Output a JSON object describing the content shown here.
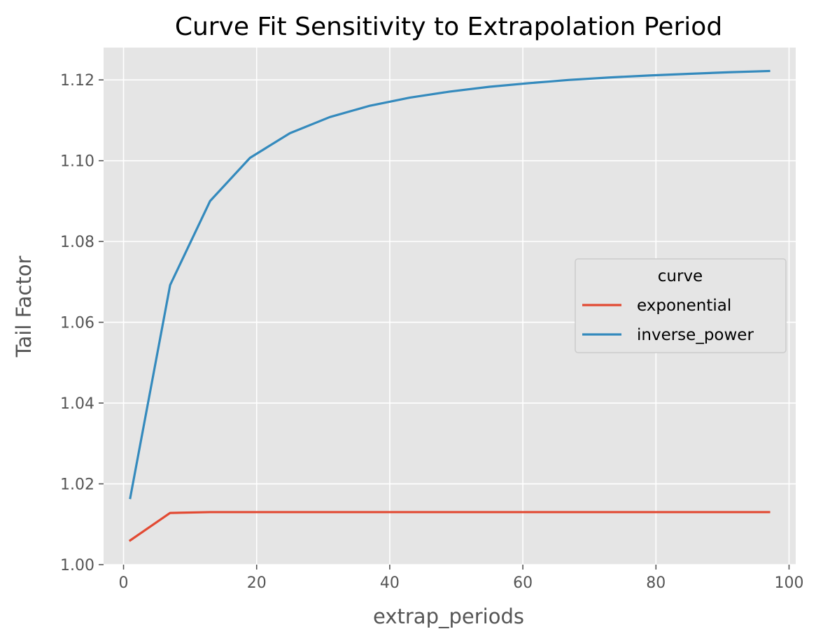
{
  "chart_data": {
    "type": "line",
    "title": "Curve Fit Sensitivity to Extrapolation Period",
    "xlabel": "extrap_periods",
    "ylabel": "Tail Factor",
    "xlim": [
      -3,
      101
    ],
    "ylim": [
      1.0,
      1.128
    ],
    "xticks": [
      0,
      20,
      40,
      60,
      80,
      100
    ],
    "xtick_labels": [
      "0",
      "20",
      "40",
      "60",
      "80",
      "100"
    ],
    "yticks": [
      1.0,
      1.02,
      1.04,
      1.06,
      1.08,
      1.1,
      1.12
    ],
    "ytick_labels": [
      "1.00",
      "1.02",
      "1.04",
      "1.06",
      "1.08",
      "1.10",
      "1.12"
    ],
    "grid": true,
    "legend": {
      "title": "curve",
      "placement": "center-right"
    },
    "x": [
      1,
      7,
      13,
      19,
      25,
      31,
      37,
      43,
      49,
      55,
      61,
      67,
      73,
      79,
      85,
      91,
      97
    ],
    "series": [
      {
        "name": "exponential",
        "color": "#E24A33",
        "values": [
          1.006,
          1.0128,
          1.013,
          1.013,
          1.013,
          1.013,
          1.013,
          1.013,
          1.013,
          1.013,
          1.013,
          1.013,
          1.013,
          1.013,
          1.013,
          1.013,
          1.013
        ]
      },
      {
        "name": "inverse_power",
        "color": "#348ABD",
        "values": [
          1.0165,
          1.0692,
          1.09,
          1.1007,
          1.1068,
          1.1108,
          1.1136,
          1.1156,
          1.1171,
          1.1183,
          1.1192,
          1.12,
          1.1206,
          1.1211,
          1.1215,
          1.1219,
          1.1222
        ]
      }
    ]
  }
}
